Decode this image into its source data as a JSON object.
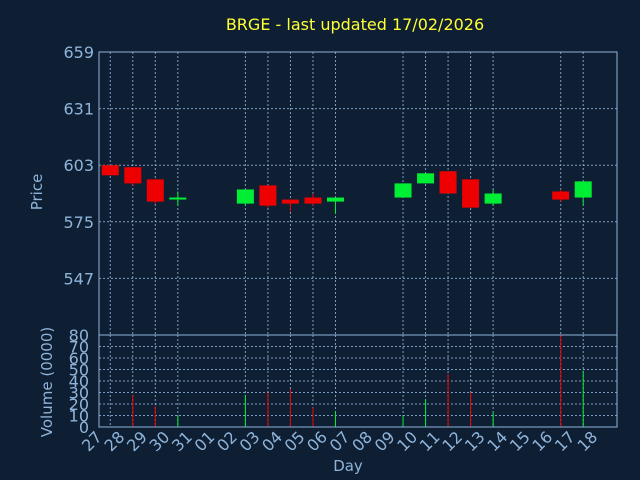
{
  "chart_data": {
    "type": "candlestick",
    "title": "BRGE - last updated 17/02/2026",
    "xlabel": "Day",
    "colors": {
      "background": "#0f1f33",
      "grid": "#8fb4da",
      "up": "#00ee33",
      "down": "#ee0000",
      "title": "#ffff33",
      "text": "#8fb4da"
    },
    "x_ticks": [
      "27",
      "28",
      "29",
      "30",
      "31",
      "01",
      "02",
      "03",
      "04",
      "05",
      "06",
      "07",
      "08",
      "09",
      "10",
      "11",
      "12",
      "13",
      "14",
      "15",
      "16",
      "17",
      "18"
    ],
    "price": {
      "ylabel": "Price",
      "ylim": [
        519,
        659
      ],
      "y_ticks": [
        "659",
        "631",
        "603",
        "575",
        "547"
      ],
      "tick_values": [
        659,
        631,
        603,
        575,
        547
      ],
      "candles": [
        {
          "day": "27",
          "open": 603,
          "close": 598,
          "high": 603,
          "low": 598
        },
        {
          "day": "28",
          "open": 602,
          "close": 594,
          "high": 602,
          "low": 593
        },
        {
          "day": "29",
          "open": 596,
          "close": 585,
          "high": 596,
          "low": 584
        },
        {
          "day": "30",
          "open": 586,
          "close": 587,
          "high": 590,
          "low": 583
        },
        {
          "day": "02",
          "open": 584,
          "close": 591,
          "high": 591,
          "low": 583
        },
        {
          "day": "03",
          "open": 593,
          "close": 583,
          "high": 593,
          "low": 582
        },
        {
          "day": "04",
          "open": 586,
          "close": 584,
          "high": 586,
          "low": 580
        },
        {
          "day": "05",
          "open": 587,
          "close": 584,
          "high": 589,
          "low": 583
        },
        {
          "day": "06",
          "open": 585,
          "close": 587,
          "high": 587,
          "low": 579
        },
        {
          "day": "09",
          "open": 587,
          "close": 594,
          "high": 594,
          "low": 587
        },
        {
          "day": "10",
          "open": 594,
          "close": 599,
          "high": 599,
          "low": 594
        },
        {
          "day": "11",
          "open": 600,
          "close": 589,
          "high": 600,
          "low": 589
        },
        {
          "day": "12",
          "open": 596,
          "close": 582,
          "high": 596,
          "low": 582
        },
        {
          "day": "13",
          "open": 584,
          "close": 589,
          "high": 591,
          "low": 583
        },
        {
          "day": "16",
          "open": 590,
          "close": 586,
          "high": 591,
          "low": 585
        },
        {
          "day": "17",
          "open": 587,
          "close": 595,
          "high": 595,
          "low": 583
        }
      ]
    },
    "volume": {
      "ylabel": "Volume (0000)",
      "ylim": [
        0,
        80
      ],
      "y_ticks": [
        "80",
        "70",
        "60",
        "50",
        "40",
        "30",
        "20",
        "10",
        "0"
      ],
      "tick_values": [
        80,
        70,
        60,
        50,
        40,
        30,
        20,
        10,
        0
      ],
      "bars": [
        {
          "day": "28",
          "value": 28,
          "dir": "down"
        },
        {
          "day": "29",
          "value": 18,
          "dir": "down"
        },
        {
          "day": "30",
          "value": 10,
          "dir": "up"
        },
        {
          "day": "02",
          "value": 28,
          "dir": "up"
        },
        {
          "day": "03",
          "value": 30,
          "dir": "down"
        },
        {
          "day": "04",
          "value": 33,
          "dir": "down"
        },
        {
          "day": "05",
          "value": 17,
          "dir": "down"
        },
        {
          "day": "06",
          "value": 14,
          "dir": "up"
        },
        {
          "day": "09",
          "value": 10,
          "dir": "up"
        },
        {
          "day": "10",
          "value": 24,
          "dir": "up"
        },
        {
          "day": "11",
          "value": 46,
          "dir": "down"
        },
        {
          "day": "12",
          "value": 30,
          "dir": "down"
        },
        {
          "day": "13",
          "value": 13,
          "dir": "up"
        },
        {
          "day": "16",
          "value": 80,
          "dir": "down"
        },
        {
          "day": "17",
          "value": 49,
          "dir": "up"
        }
      ]
    }
  }
}
